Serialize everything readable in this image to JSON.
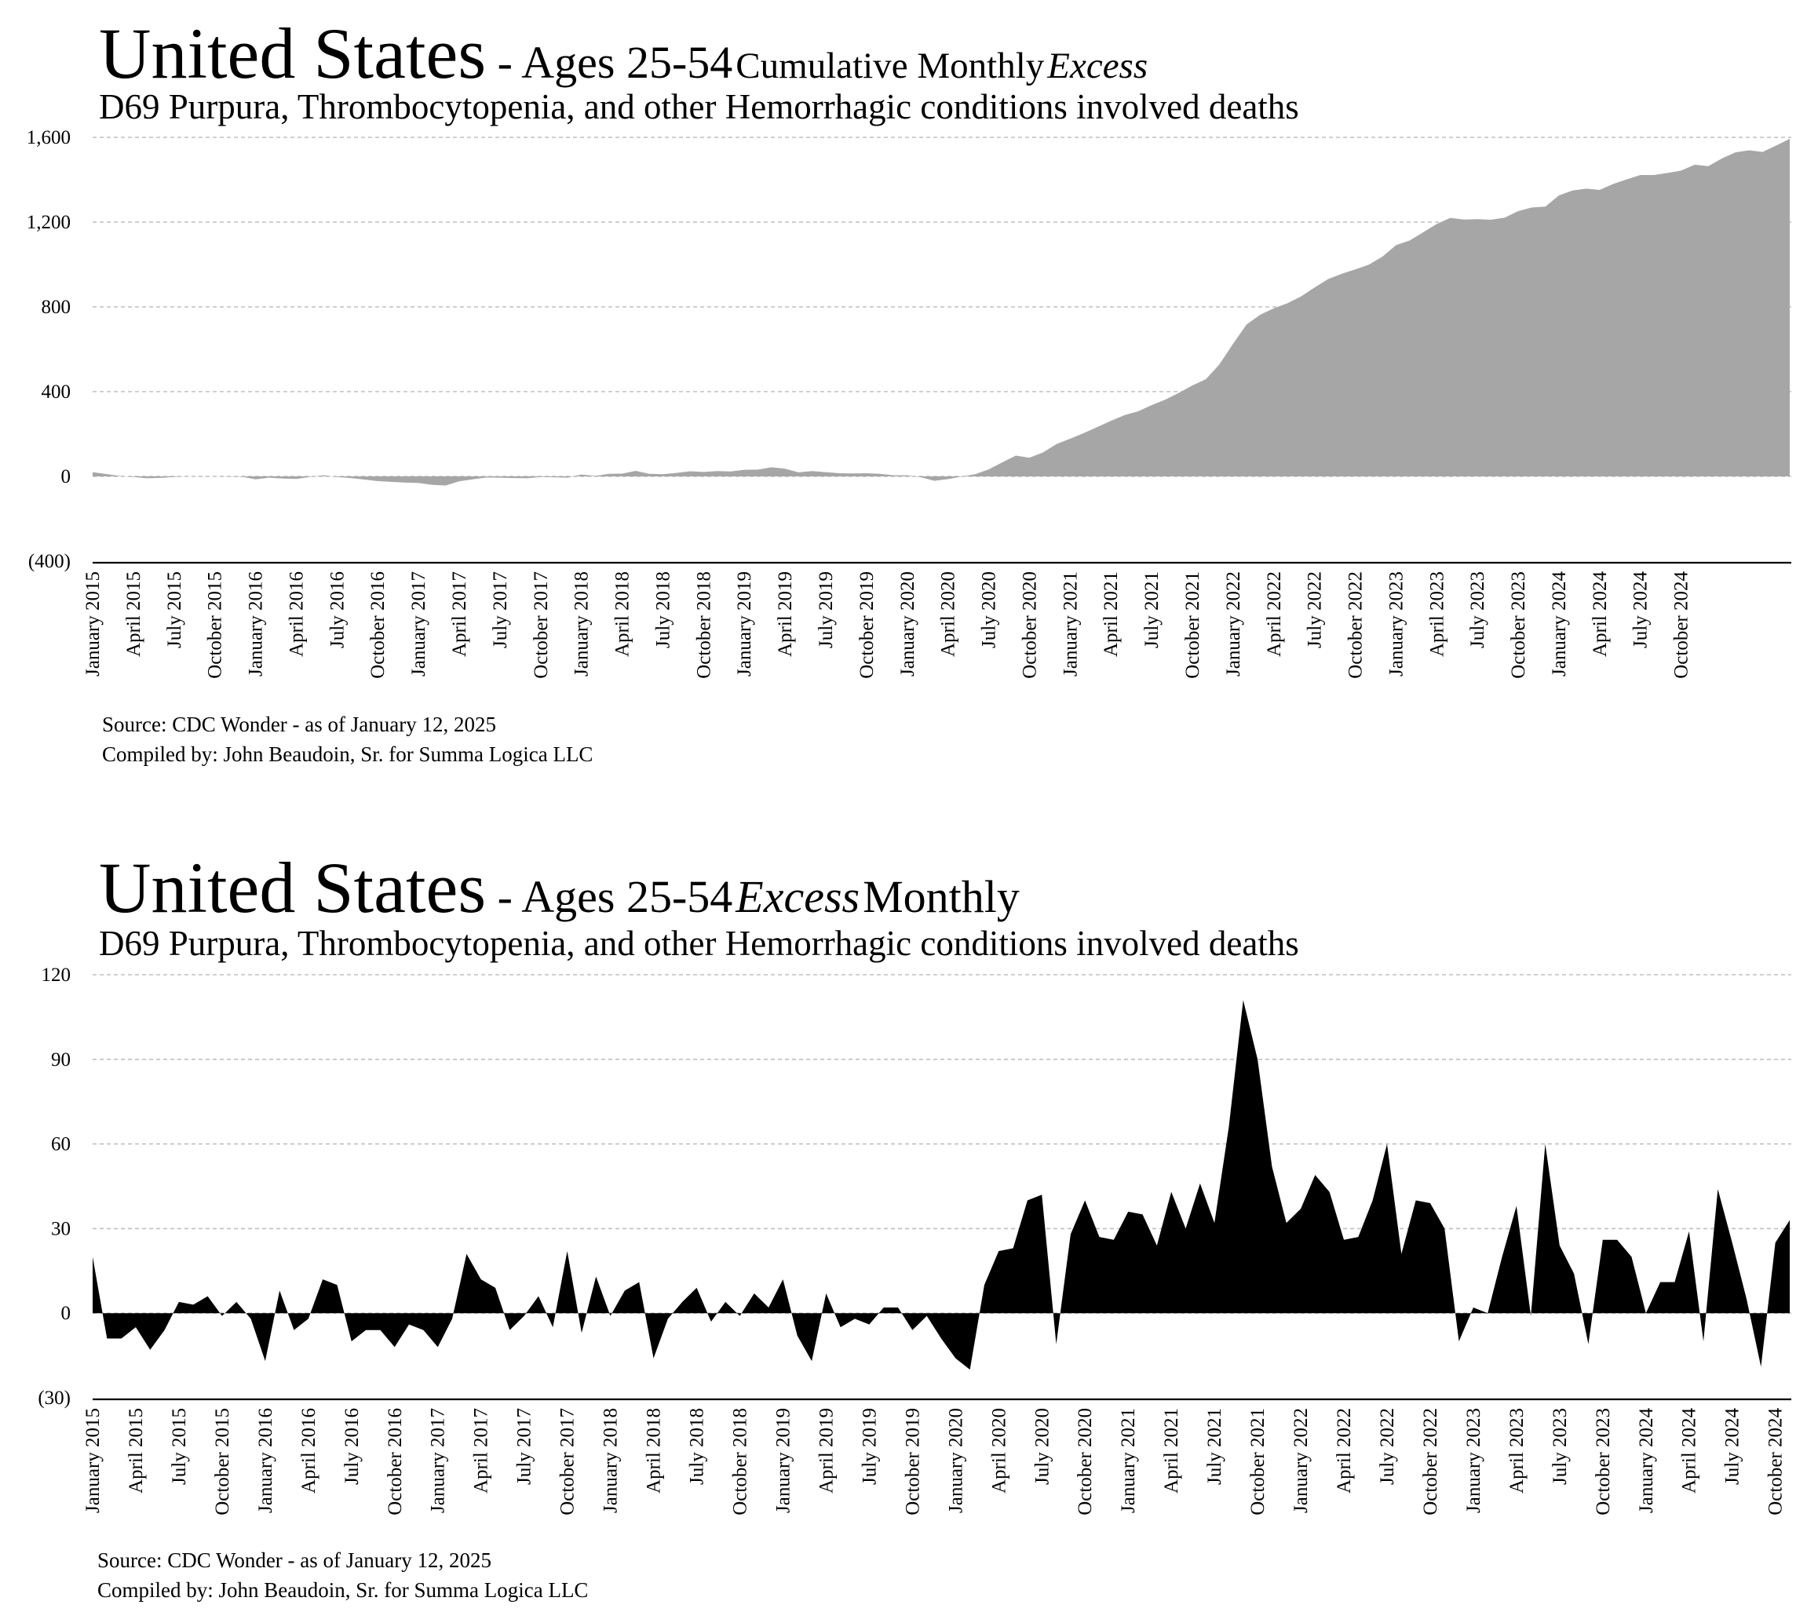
{
  "charts": [
    {
      "title": {
        "main": "United States",
        "dash": " - ",
        "ages": "Ages 25-54",
        "suffix_a": "Cumulative Monthly",
        "suffix_italic": "Excess",
        "suffix_b": ""
      },
      "subtitle": "D69 Purpura, Thrombocytopenia, and other Hemorrhagic conditions involved deaths",
      "source": "Source:  CDC Wonder - as of January 12, 2025",
      "compiled": "Compiled by:  John Beaudoin, Sr. for Summa Logica LLC"
    },
    {
      "title": {
        "main": "United States",
        "dash": " - ",
        "ages": "Ages 25-54",
        "suffix_a": "",
        "suffix_italic": "Excess",
        "suffix_b": "Monthly"
      },
      "subtitle": "D69 Purpura, Thrombocytopenia, and other Hemorrhagic conditions involved deaths",
      "source": "Source:  CDC Wonder - as of January 12, 2025",
      "compiled": "Compiled by:  John Beaudoin, Sr. for Summa Logica LLC"
    }
  ],
  "chart_data": [
    {
      "type": "area",
      "title": "United States - Ages 25-54 Cumulative Monthly Excess",
      "subtitle": "D69 Purpura, Thrombocytopenia, and other Hemorrhagic conditions involved deaths",
      "x_start": "January 2015",
      "x_tick_labels": [
        "January 2015",
        "April 2015",
        "July 2015",
        "October 2015",
        "January 2016",
        "April 2016",
        "July 2016",
        "October 2016",
        "January 2017",
        "April 2017",
        "July 2017",
        "October 2017",
        "January 2018",
        "April 2018",
        "July 2018",
        "October 2018",
        "January 2019",
        "April 2019",
        "July 2019",
        "October 2019",
        "January 2020",
        "April 2020",
        "July 2020",
        "October 2020",
        "January 2021",
        "April 2021",
        "July 2021",
        "October 2021",
        "January 2022",
        "April 2022",
        "July 2022",
        "October 2022",
        "January 2023",
        "April 2023",
        "July 2023",
        "October 2023",
        "January 2024",
        "April 2024",
        "July 2024",
        "October 2024"
      ],
      "y_tick_labels": [
        "1,600",
        "1,200",
        "800",
        "400",
        "0",
        "(400)"
      ],
      "ylim": [
        -400,
        1600
      ],
      "grid": "horizontal dashed",
      "color": "#a6a6a6",
      "values": [
        20,
        11,
        2,
        -3,
        -9,
        -7,
        -3,
        1,
        -1,
        0,
        -1,
        -2,
        -14,
        -6,
        -10,
        -12,
        -3,
        5,
        -3,
        -8,
        -15,
        -22,
        -26,
        -29,
        -31,
        -40,
        -43,
        -23,
        -14,
        -5,
        -6,
        -8,
        -9,
        -3,
        -4,
        -6,
        9,
        2,
        12,
        13,
        26,
        12,
        10,
        16,
        24,
        21,
        25,
        23,
        31,
        32,
        43,
        36,
        19,
        25,
        20,
        15,
        14,
        15,
        12,
        5,
        5,
        -4,
        -21,
        -13,
        -1,
        10,
        33,
        66,
        98,
        88,
        113,
        153,
        178,
        204,
        233,
        262,
        289,
        307,
        336,
        362,
        394,
        429,
        459,
        529,
        626,
        717,
        763,
        793,
        817,
        849,
        891,
        931,
        956,
        977,
        999,
        1037,
        1091,
        1113,
        1152,
        1191,
        1220,
        1212,
        1214,
        1211,
        1221,
        1252,
        1269,
        1273,
        1326,
        1349,
        1358,
        1352,
        1380,
        1402,
        1422,
        1422,
        1432,
        1443,
        1471,
        1464,
        1500,
        1529,
        1539,
        1531,
        1561,
        1593
      ]
    },
    {
      "type": "area",
      "title": "United States - Ages 25-54 Excess Monthly",
      "subtitle": "D69 Purpura, Thrombocytopenia, and other Hemorrhagic conditions involved deaths",
      "x_start": "January 2015",
      "x_tick_labels": [
        "January 2015",
        "April 2015",
        "July 2015",
        "October 2015",
        "January 2016",
        "April 2016",
        "July 2016",
        "October 2016",
        "January 2017",
        "April 2017",
        "July 2017",
        "October 2017",
        "January 2018",
        "April 2018",
        "July 2018",
        "October 2018",
        "January 2019",
        "April 2019",
        "July 2019",
        "October 2019",
        "January 2020",
        "April 2020",
        "July 2020",
        "October 2020",
        "January 2021",
        "April 2021",
        "July 2021",
        "October 2021",
        "January 2022",
        "April 2022",
        "July 2022",
        "October 2022",
        "January 2023",
        "April 2023",
        "July 2023",
        "October 2023",
        "January 2024",
        "April 2024",
        "July 2024",
        "October 2024"
      ],
      "y_tick_labels": [
        "120",
        "90",
        "60",
        "30",
        "0",
        "(30)"
      ],
      "ylim": [
        -30,
        120
      ],
      "grid": "horizontal dashed",
      "color": "#000000",
      "values": [
        20,
        -9,
        -9,
        -5,
        -13,
        -6,
        4,
        3,
        6,
        -1,
        4,
        -2,
        -17,
        8,
        -6,
        -2,
        12,
        10,
        -10,
        -6,
        -6,
        -12,
        -4,
        -6,
        -12,
        -2,
        21,
        12,
        9,
        -6,
        -1,
        6,
        -5,
        22,
        -7,
        13,
        -1,
        8,
        11,
        -16,
        -2,
        4,
        9,
        -3,
        4,
        -1,
        7,
        2,
        12,
        -8,
        -17,
        7,
        -5,
        -2,
        -4,
        2,
        2,
        -6,
        -1,
        -9,
        -16,
        -20,
        10,
        22,
        23,
        40,
        42,
        -11,
        28,
        40,
        27,
        26,
        36,
        35,
        24,
        43,
        30,
        46,
        32,
        66,
        111,
        90,
        52,
        32,
        37,
        49,
        43,
        26,
        27,
        40,
        60,
        21,
        40,
        39,
        30,
        -10,
        2,
        0,
        20,
        38,
        -1,
        60,
        24,
        14,
        -11,
        26,
        26,
        20,
        0,
        11,
        11,
        29,
        -10,
        44,
        25,
        5,
        -19,
        25,
        33
      ]
    }
  ]
}
